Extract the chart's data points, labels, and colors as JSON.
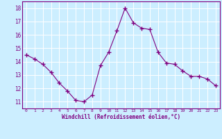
{
  "x": [
    0,
    1,
    2,
    3,
    4,
    5,
    6,
    7,
    8,
    9,
    10,
    11,
    12,
    13,
    14,
    15,
    16,
    17,
    18,
    19,
    20,
    21,
    22,
    23
  ],
  "y": [
    14.5,
    14.2,
    13.8,
    13.2,
    12.4,
    11.8,
    11.1,
    11.0,
    11.5,
    13.7,
    14.7,
    16.3,
    18.0,
    16.9,
    16.5,
    16.4,
    14.7,
    13.9,
    13.8,
    13.3,
    12.9,
    12.9,
    12.7,
    12.2
  ],
  "line_color": "#800080",
  "marker": "+",
  "marker_size": 4,
  "background_color": "#cceeff",
  "grid_color": "#ffffff",
  "xlabel": "Windchill (Refroidissement éolien,°C)",
  "xlabel_color": "#800080",
  "tick_color": "#800080",
  "spine_color": "#800080",
  "ylim": [
    10.5,
    18.5
  ],
  "xlim": [
    -0.5,
    23.5
  ],
  "yticks": [
    11,
    12,
    13,
    14,
    15,
    16,
    17,
    18
  ],
  "xticks": [
    0,
    1,
    2,
    3,
    4,
    5,
    6,
    7,
    8,
    9,
    10,
    11,
    12,
    13,
    14,
    15,
    16,
    17,
    18,
    19,
    20,
    21,
    22,
    23
  ]
}
